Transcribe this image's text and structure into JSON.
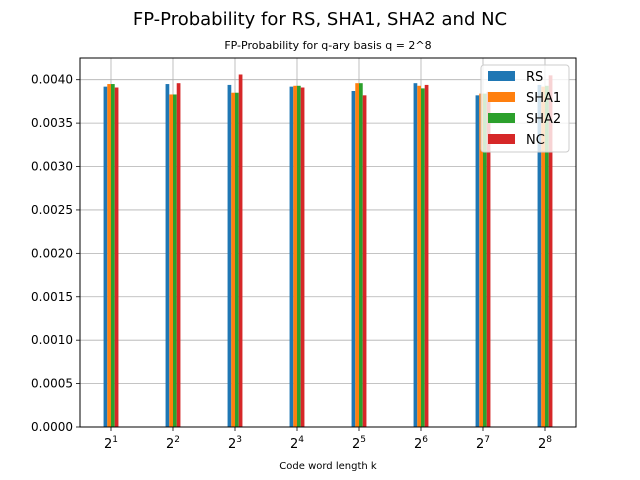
{
  "chart_data": {
    "type": "bar",
    "title": "FP-Probability for RS, SHA1, SHA2 and NC",
    "subtitle": "FP-Probability for q-ary basis q = 2^8",
    "xlabel": "Code word length k",
    "ylabel": "",
    "categories": [
      {
        "base": "2",
        "exp": "1"
      },
      {
        "base": "2",
        "exp": "2"
      },
      {
        "base": "2",
        "exp": "3"
      },
      {
        "base": "2",
        "exp": "4"
      },
      {
        "base": "2",
        "exp": "5"
      },
      {
        "base": "2",
        "exp": "6"
      },
      {
        "base": "2",
        "exp": "7"
      },
      {
        "base": "2",
        "exp": "8"
      }
    ],
    "ylim": [
      0,
      0.00425
    ],
    "yticks": [
      "0.0000",
      "0.0005",
      "0.0010",
      "0.0015",
      "0.0020",
      "0.0025",
      "0.0030",
      "0.0035",
      "0.0040"
    ],
    "ytick_values": [
      0,
      0.0005,
      0.001,
      0.0015,
      0.002,
      0.0025,
      0.003,
      0.0035,
      0.004
    ],
    "grid": true,
    "legend_position": "top-right",
    "series": [
      {
        "name": "RS",
        "color": "#1f77b4",
        "values": [
          0.00392,
          0.00395,
          0.00394,
          0.00392,
          0.00387,
          0.00396,
          0.00382,
          0.00394
        ]
      },
      {
        "name": "SHA1",
        "color": "#ff7f0e",
        "values": [
          0.00395,
          0.00383,
          0.00385,
          0.00393,
          0.00396,
          0.00393,
          0.00384,
          0.00392
        ]
      },
      {
        "name": "SHA2",
        "color": "#2ca02c",
        "values": [
          0.00395,
          0.00383,
          0.00385,
          0.00393,
          0.00396,
          0.0039,
          0.00384,
          0.00393
        ]
      },
      {
        "name": "NC",
        "color": "#d62728",
        "values": [
          0.00391,
          0.00396,
          0.00406,
          0.00391,
          0.00382,
          0.00394,
          0.00386,
          0.00405
        ]
      }
    ]
  }
}
